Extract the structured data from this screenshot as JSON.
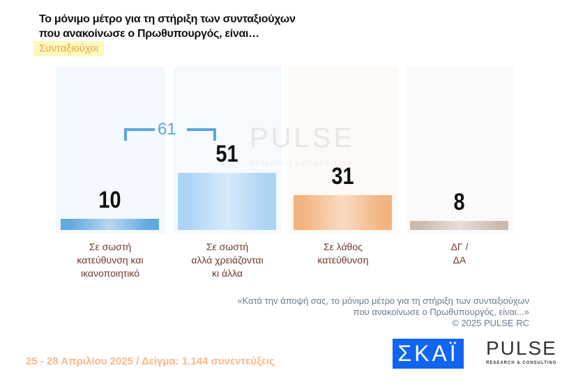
{
  "title_line1": "Το μόνιμο μέτρο  για τη στήριξη των συνταξιούχων",
  "title_line2": "που ανακοίνωσε ο Πρωθυπουργός, είναι…",
  "subgroup": "Συνταξιούχοι",
  "chart_data": {
    "type": "bar",
    "categories": [
      "Σε σωστή κατεύθυνση και ικανοποιητικό",
      "Σε σωστή αλλά χρειάζονται κι άλλα",
      "Σε λάθος κατεύθυνση",
      "ΔΓ / ΔΑ"
    ],
    "category_lines": [
      [
        "Σε σωστή",
        "κατεύθυνση και",
        "ικανοποιητικό"
      ],
      [
        "Σε σωστή",
        "αλλά χρειάζονται",
        "κι άλλα"
      ],
      [
        "Σε λάθος",
        "κατεύθυνση"
      ],
      [
        "ΔΓ /",
        "ΔΑ"
      ]
    ],
    "values": [
      10,
      51,
      31,
      8
    ],
    "value_labels": [
      "10",
      "51",
      "31",
      "8"
    ],
    "annotation": {
      "label": "61",
      "spans": [
        0,
        1
      ]
    },
    "colors": [
      "#5aa5e0",
      "#a8d2f5",
      "#f2b07a",
      "#c8b8a8"
    ],
    "background_colors": [
      "#f3f9fe",
      "#f6fafe",
      "#fef9f4",
      "#fbfaf9"
    ],
    "ylim": [
      0,
      100
    ],
    "grid": false
  },
  "note_line1": "«Κατά την άποψή σας, το μόνιμο μέτρο  για τη στήριξη των συνταξιούχων",
  "note_line2": "που ανακοίνωσε ο Πρωθυπουργός, είναι...»",
  "copyright": "©  2025  PULSE RC",
  "footer": "25 - 28 Απριλίου 2025  /  Δείγμα:  1.144 συνεντεύξεις",
  "logo_skai": "ΣΚΑΪ",
  "logo_pulse": "PULSE",
  "logo_pulse_tag": "RESEARCH & CONSULTING"
}
